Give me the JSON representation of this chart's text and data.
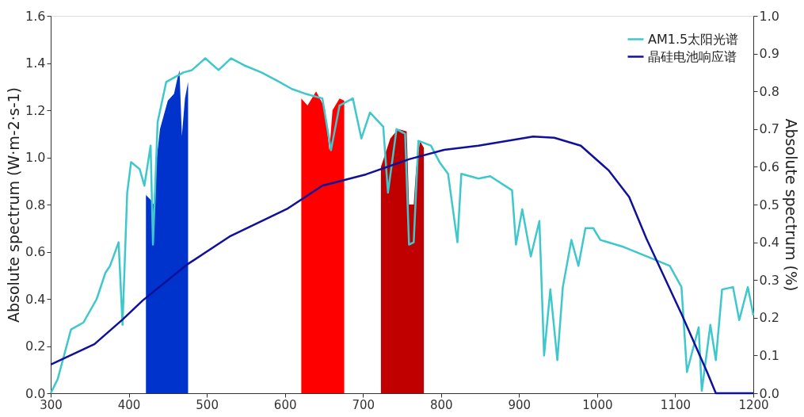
{
  "chart_data": {
    "type": "line",
    "ylabel": "Absolute spectrum (W·m-2·s-1)",
    "y2label": "Absolute spectrum (%)",
    "xlim": [
      300,
      1200
    ],
    "xticks": [
      300,
      400,
      500,
      600,
      700,
      800,
      900,
      1000,
      1100,
      1200
    ],
    "ylim": [
      0,
      1.6
    ],
    "yticks": [
      {
        "value": 0,
        "label": "0.0"
      },
      {
        "value": 0.2,
        "label": "0.2"
      },
      {
        "value": 0.4,
        "label": "0.4"
      },
      {
        "value": 0.6,
        "label": "0.6"
      },
      {
        "value": 0.8,
        "label": "0.8"
      },
      {
        "value": 1,
        "label": "1.0"
      },
      {
        "value": 1.2,
        "label": "1.2"
      },
      {
        "value": 1.4,
        "label": "1.4"
      },
      {
        "value": 1.6,
        "label": "1.6"
      }
    ],
    "y2lim": [
      0,
      1
    ],
    "y2ticks": [
      {
        "value": 0,
        "label": "0.0"
      },
      {
        "value": 0.1,
        "label": "0.1"
      },
      {
        "value": 0.2,
        "label": "0.2"
      },
      {
        "value": 0.3,
        "label": "0.3"
      },
      {
        "value": 0.4,
        "label": "0.4"
      },
      {
        "value": 0.5,
        "label": "0.5"
      },
      {
        "value": 0.6,
        "label": "0.6"
      },
      {
        "value": 0.7,
        "label": "0.7"
      },
      {
        "value": 0.8,
        "label": "0.8"
      },
      {
        "value": 0.9,
        "label": "0.9"
      },
      {
        "value": 1,
        "label": "1.0"
      }
    ],
    "grid": false,
    "legend": "top right",
    "marker": "none",
    "line_style": "solid",
    "series": [
      {
        "type": "area",
        "color": "#0033cc",
        "x": [
          422,
          428,
          432,
          435,
          440,
          450,
          458,
          462,
          465,
          468,
          472,
          476
        ],
        "values": [
          0.84,
          0.82,
          0.8,
          0.97,
          1.12,
          1.24,
          1.27,
          1.33,
          1.37,
          1.09,
          1.25,
          1.32
        ]
      },
      {
        "type": "area",
        "color": "#ff0000",
        "x": [
          621,
          629,
          640,
          651,
          657,
          661,
          670,
          676
        ],
        "values": [
          1.25,
          1.22,
          1.28,
          1.21,
          1.03,
          1.2,
          1.25,
          1.24
        ]
      },
      {
        "type": "area",
        "color": "#c00000",
        "x": [
          723,
          735,
          745,
          756,
          759,
          765,
          768,
          773,
          778
        ],
        "values": [
          0.96,
          1.08,
          1.12,
          1.11,
          0.8,
          0.8,
          0.95,
          1.07,
          1.04
        ]
      },
      {
        "name": "AM1.5太阳光谱",
        "color": "#3ec8cc",
        "x": [
          300,
          309,
          326,
          342,
          359,
          370,
          376,
          387,
          392,
          398,
          403,
          414,
          420,
          428,
          431,
          437,
          448,
          459,
          470,
          481,
          498,
          515,
          531,
          548,
          570,
          593,
          609,
          626,
          648,
          659,
          670,
          687,
          698,
          709,
          726,
          732,
          743,
          754,
          759,
          765,
          771,
          787,
          798,
          809,
          821,
          826,
          848,
          863,
          891,
          896,
          904,
          915,
          926,
          932,
          940,
          949,
          956,
          967,
          976,
          985,
          995,
          1004,
          1034,
          1071,
          1093,
          1108,
          1115,
          1130,
          1134,
          1145,
          1152,
          1160,
          1174,
          1182,
          1193,
          1199,
          1200
        ],
        "values": [
          0,
          0.06,
          0.27,
          0.3,
          0.4,
          0.51,
          0.54,
          0.64,
          0.29,
          0.85,
          0.98,
          0.95,
          0.88,
          1.05,
          0.63,
          1.15,
          1.32,
          1.34,
          1.36,
          1.37,
          1.42,
          1.37,
          1.42,
          1.39,
          1.36,
          1.32,
          1.29,
          1.27,
          1.25,
          1.03,
          1.22,
          1.25,
          1.08,
          1.19,
          1.13,
          0.85,
          1.12,
          1.1,
          0.63,
          0.64,
          1.07,
          1.05,
          0.98,
          0.93,
          0.64,
          0.93,
          0.91,
          0.92,
          0.86,
          0.63,
          0.78,
          0.58,
          0.73,
          0.16,
          0.44,
          0.14,
          0.45,
          0.65,
          0.54,
          0.7,
          0.7,
          0.65,
          0.62,
          0.57,
          0.54,
          0.45,
          0.09,
          0.28,
          0.01,
          0.29,
          0.14,
          0.44,
          0.45,
          0.31,
          0.45,
          0.35,
          0.33
        ]
      },
      {
        "name": "晶硅电池响应谱",
        "color": "#10109a",
        "axis": "y2",
        "x": [
          300,
          356,
          392,
          418,
          474,
          529,
          604,
          648,
          704,
          759,
          804,
          848,
          918,
          945,
          979,
          1015,
          1041,
          1063,
          1108,
          1141,
          1152,
          1200
        ],
        "values": [
          0.076,
          0.13,
          0.195,
          0.246,
          0.34,
          0.415,
          0.49,
          0.55,
          0.58,
          0.62,
          0.645,
          0.656,
          0.68,
          0.677,
          0.656,
          0.59,
          0.52,
          0.41,
          0.21,
          0.055,
          0,
          0
        ]
      }
    ]
  }
}
